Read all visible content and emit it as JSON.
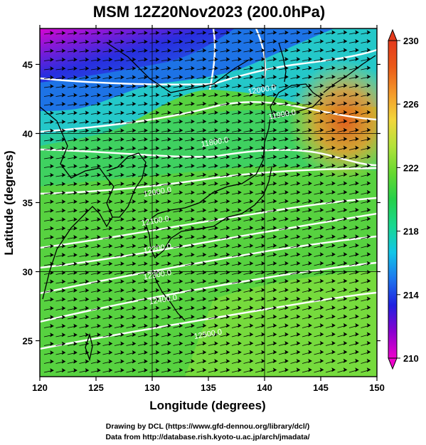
{
  "title": "MSM 12Z20Nov2023 (200.0hPa)",
  "xlabel": "Longitude (degrees)",
  "ylabel": "Latitude  (degrees)",
  "credits": [
    "Drawing by DCL (https://www.gfd-dennou.org/library/dcl/)",
    "Data from http://database.rish.kyoto-u.ac.jp/arch/jmadata/"
  ],
  "map": {
    "lon_range": [
      120,
      150
    ],
    "lat_range": [
      22.4,
      47.6
    ],
    "lon_ticks": [
      120,
      125,
      130,
      135,
      140,
      145,
      150
    ],
    "lat_ticks": [
      25,
      30,
      35,
      40,
      45
    ],
    "grid_lon": [
      130,
      140
    ],
    "grid_lat": [
      30,
      40
    ],
    "field": "temperature",
    "wind_vectors": true
  },
  "colorbar": {
    "min": 210,
    "max": 230,
    "tick_values": [
      230,
      226,
      222,
      218,
      214,
      210
    ],
    "tick_labels": [
      "230",
      "226",
      "222",
      "218",
      "214",
      "210"
    ],
    "extend": "both",
    "colors": [
      "#ee00cc",
      "#8a00d0",
      "#2020e0",
      "#1d77ee",
      "#11c6e8",
      "#19d890",
      "#25d04a",
      "#66d930",
      "#b3e23a",
      "#f2d63b",
      "#f49a2a",
      "#ea5a18",
      "#e43a1c"
    ]
  },
  "contours": {
    "units": "m",
    "labels": [
      {
        "text": "12000.0",
        "lon": 139.8,
        "lat": 43.0
      },
      {
        "text": "11900.0",
        "lon": 141.6,
        "lat": 41.2
      },
      {
        "text": "11800.0",
        "lon": 135.6,
        "lat": 39.2
      },
      {
        "text": "12000.0",
        "lon": 130.5,
        "lat": 35.6
      },
      {
        "text": "12100.0",
        "lon": 130.3,
        "lat": 33.5
      },
      {
        "text": "12200.0",
        "lon": 130.5,
        "lat": 31.5
      },
      {
        "text": "12300.0",
        "lon": 130.5,
        "lat": 29.6
      },
      {
        "text": "12400.0",
        "lon": 131.0,
        "lat": 27.8
      },
      {
        "text": "12500.0",
        "lon": 135.0,
        "lat": 25.3
      }
    ]
  },
  "chart_data": {
    "type": "heatmap",
    "title": "MSM 12Z20Nov2023 (200.0hPa)",
    "xlabel": "Longitude (degrees)",
    "ylabel": "Latitude  (degrees)",
    "xlim": [
      120,
      150
    ],
    "ylim": [
      22.4,
      47.6
    ],
    "colorbar_range": [
      210,
      230
    ],
    "regions": [
      {
        "area": "northwest corner",
        "lon": 122,
        "lat": 46.5,
        "value": 211
      },
      {
        "area": "north of Hokkaido",
        "lon": 133,
        "lat": 45.5,
        "value": 214
      },
      {
        "area": "Sea of Japan north",
        "lon": 137,
        "lat": 43.0,
        "value": 218
      },
      {
        "area": "off northeast Japan",
        "lon": 147,
        "lat": 41.5,
        "value": 227
      },
      {
        "area": "central latitudes",
        "lon": 132,
        "lat": 36.0,
        "value": 221.5
      },
      {
        "area": "southern latitudes",
        "lon": 138,
        "lat": 26.0,
        "value": 223
      }
    ]
  }
}
